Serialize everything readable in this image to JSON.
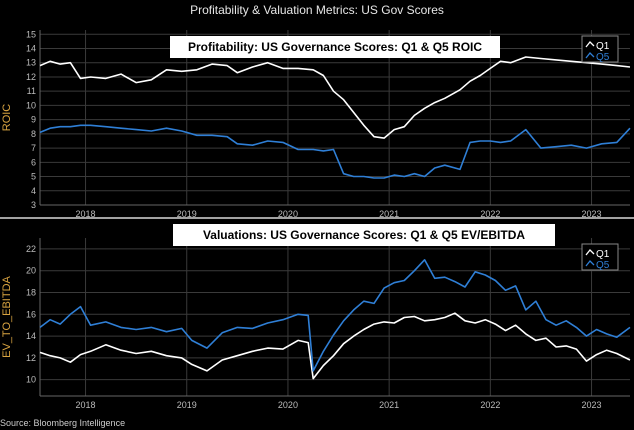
{
  "page": {
    "title": "Profitability & Valuation Metrics: US Gov Scores",
    "source": "Source: Bloomberg Intelligence"
  },
  "colors": {
    "q1": "#ffffff",
    "q5": "#2f7fd6",
    "background": "#000000",
    "axis_label": "#d9a441"
  },
  "chart_data": [
    {
      "type": "line",
      "title": "Profitability: US Governance Scores: Q1 & Q5 ROIC",
      "ylabel": "ROIC",
      "xlabel": "",
      "ylim": [
        3,
        15.3
      ],
      "yticks": [
        3,
        4,
        5,
        6,
        7,
        8,
        9,
        10,
        11,
        12,
        13,
        14,
        15
      ],
      "xlim": [
        2017.55,
        2023.38
      ],
      "xticks": [
        2018,
        2019,
        2020,
        2021,
        2022,
        2023
      ],
      "xtick_labels": [
        "2018",
        "2019",
        "2020",
        "2021",
        "2022",
        "2023"
      ],
      "grid": true,
      "legend": "top-right",
      "series": [
        {
          "name": "Q1",
          "x": [
            2017.55,
            2017.65,
            2017.75,
            2017.85,
            2017.95,
            2018.05,
            2018.2,
            2018.35,
            2018.5,
            2018.65,
            2018.8,
            2018.95,
            2019.1,
            2019.25,
            2019.4,
            2019.5,
            2019.65,
            2019.8,
            2019.95,
            2020.1,
            2020.25,
            2020.35,
            2020.45,
            2020.55,
            2020.65,
            2020.75,
            2020.85,
            2020.95,
            2021.05,
            2021.15,
            2021.25,
            2021.35,
            2021.45,
            2021.55,
            2021.7,
            2021.8,
            2021.9,
            2022.0,
            2022.1,
            2022.2,
            2022.35,
            2022.5,
            2022.65,
            2022.8,
            2022.95,
            2023.1,
            2023.25,
            2023.38
          ],
          "values": [
            12.8,
            13.1,
            12.9,
            13.0,
            11.9,
            12.0,
            11.9,
            12.2,
            11.6,
            11.8,
            12.5,
            12.4,
            12.5,
            12.9,
            12.8,
            12.3,
            12.7,
            13.0,
            12.6,
            12.6,
            12.5,
            12.1,
            11.0,
            10.4,
            9.5,
            8.6,
            7.8,
            7.7,
            8.3,
            8.5,
            9.3,
            9.8,
            10.2,
            10.5,
            11.1,
            11.7,
            12.1,
            12.6,
            13.1,
            13.0,
            13.4,
            13.3,
            13.2,
            13.1,
            13.0,
            12.9,
            12.8,
            12.7
          ]
        },
        {
          "name": "Q5",
          "x": [
            2017.55,
            2017.65,
            2017.75,
            2017.85,
            2017.95,
            2018.05,
            2018.2,
            2018.35,
            2018.5,
            2018.65,
            2018.8,
            2018.95,
            2019.1,
            2019.25,
            2019.4,
            2019.5,
            2019.65,
            2019.8,
            2019.95,
            2020.1,
            2020.25,
            2020.35,
            2020.45,
            2020.55,
            2020.65,
            2020.75,
            2020.85,
            2020.95,
            2021.05,
            2021.15,
            2021.25,
            2021.35,
            2021.45,
            2021.55,
            2021.7,
            2021.8,
            2021.9,
            2022.0,
            2022.1,
            2022.2,
            2022.35,
            2022.5,
            2022.65,
            2022.8,
            2022.95,
            2023.1,
            2023.25,
            2023.38
          ],
          "values": [
            8.1,
            8.4,
            8.5,
            8.5,
            8.6,
            8.6,
            8.5,
            8.4,
            8.3,
            8.2,
            8.4,
            8.2,
            7.9,
            7.9,
            7.8,
            7.3,
            7.2,
            7.5,
            7.4,
            6.9,
            6.9,
            6.8,
            6.9,
            5.2,
            5.0,
            5.0,
            4.9,
            4.9,
            5.1,
            5.0,
            5.2,
            5.0,
            5.6,
            5.8,
            5.5,
            7.4,
            7.5,
            7.5,
            7.4,
            7.5,
            8.3,
            7.0,
            7.1,
            7.2,
            7.0,
            7.3,
            7.4,
            8.4
          ]
        }
      ]
    },
    {
      "type": "line",
      "title": "Valuations: US Governance Scores: Q1 & Q5 EV/EBITDA",
      "ylabel": "EV_TO_EBITDA",
      "xlabel": "",
      "ylim": [
        8.5,
        23
      ],
      "yticks": [
        10,
        12,
        14,
        16,
        18,
        20,
        22
      ],
      "xlim": [
        2017.55,
        2023.38
      ],
      "xticks": [
        2018,
        2019,
        2020,
        2021,
        2022,
        2023
      ],
      "xtick_labels": [
        "2018",
        "2019",
        "2020",
        "2021",
        "2022",
        "2023"
      ],
      "grid": true,
      "legend": "top-right",
      "series": [
        {
          "name": "Q1",
          "x": [
            2017.55,
            2017.65,
            2017.75,
            2017.85,
            2017.95,
            2018.05,
            2018.2,
            2018.35,
            2018.5,
            2018.65,
            2018.8,
            2018.95,
            2019.05,
            2019.2,
            2019.35,
            2019.5,
            2019.65,
            2019.8,
            2019.95,
            2020.1,
            2020.2,
            2020.25,
            2020.35,
            2020.45,
            2020.55,
            2020.65,
            2020.75,
            2020.85,
            2020.95,
            2021.05,
            2021.15,
            2021.25,
            2021.35,
            2021.45,
            2021.55,
            2021.65,
            2021.75,
            2021.85,
            2021.95,
            2022.05,
            2022.15,
            2022.25,
            2022.35,
            2022.45,
            2022.55,
            2022.65,
            2022.75,
            2022.85,
            2022.95,
            2023.05,
            2023.15,
            2023.25,
            2023.38
          ],
          "values": [
            12.5,
            12.2,
            12.0,
            11.6,
            12.3,
            12.6,
            13.2,
            12.7,
            12.4,
            12.6,
            12.2,
            12.0,
            11.4,
            10.8,
            11.8,
            12.2,
            12.6,
            12.9,
            12.8,
            13.6,
            13.4,
            10.1,
            11.3,
            12.2,
            13.3,
            14.0,
            14.6,
            15.1,
            15.3,
            15.2,
            15.7,
            15.8,
            15.4,
            15.5,
            15.7,
            16.1,
            15.4,
            15.2,
            15.5,
            15.1,
            14.5,
            15.0,
            14.2,
            13.6,
            13.8,
            13.0,
            13.1,
            12.8,
            11.7,
            12.3,
            12.7,
            12.4,
            11.8
          ]
        },
        {
          "name": "Q5",
          "x": [
            2017.55,
            2017.65,
            2017.75,
            2017.85,
            2017.95,
            2018.05,
            2018.2,
            2018.35,
            2018.5,
            2018.65,
            2018.8,
            2018.95,
            2019.05,
            2019.2,
            2019.35,
            2019.5,
            2019.65,
            2019.8,
            2019.95,
            2020.1,
            2020.2,
            2020.25,
            2020.35,
            2020.45,
            2020.55,
            2020.65,
            2020.75,
            2020.85,
            2020.95,
            2021.05,
            2021.15,
            2021.25,
            2021.35,
            2021.45,
            2021.55,
            2021.65,
            2021.75,
            2021.85,
            2021.95,
            2022.05,
            2022.15,
            2022.25,
            2022.35,
            2022.45,
            2022.55,
            2022.65,
            2022.75,
            2022.85,
            2022.95,
            2023.05,
            2023.15,
            2023.25,
            2023.38
          ],
          "values": [
            14.8,
            15.5,
            15.1,
            16.0,
            16.7,
            15.0,
            15.3,
            14.8,
            14.6,
            14.8,
            14.4,
            14.7,
            13.6,
            12.9,
            14.3,
            14.8,
            14.7,
            15.2,
            15.5,
            16.0,
            15.9,
            10.8,
            12.6,
            14.1,
            15.4,
            16.4,
            17.2,
            17.0,
            18.4,
            18.9,
            19.1,
            20.0,
            21.0,
            19.3,
            19.4,
            19.0,
            18.5,
            19.9,
            19.6,
            19.1,
            18.2,
            18.6,
            16.4,
            17.2,
            15.5,
            15.0,
            15.4,
            14.8,
            14.0,
            14.6,
            14.2,
            13.9,
            14.8
          ]
        }
      ]
    }
  ]
}
